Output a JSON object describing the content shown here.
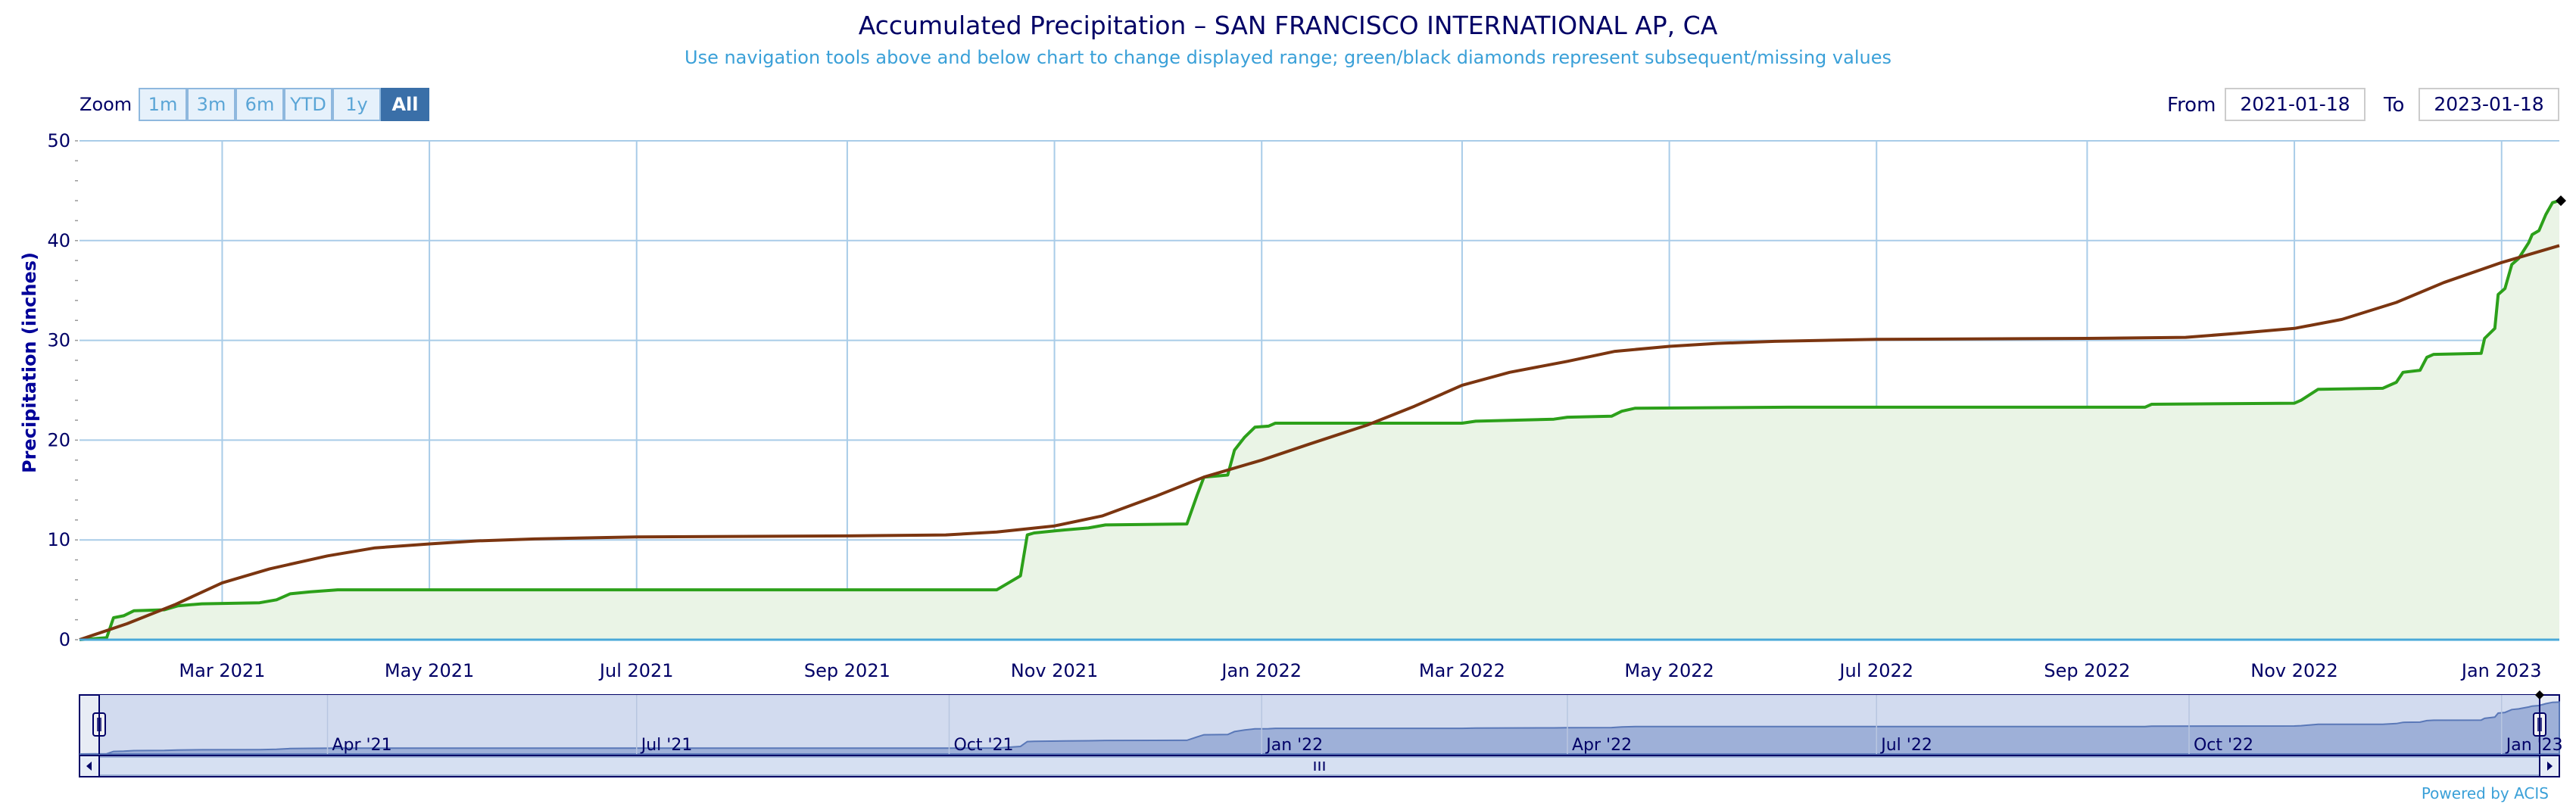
{
  "title": "Accumulated Precipitation – SAN FRANCISCO INTERNATIONAL AP, CA",
  "subtitle": "Use navigation tools above and below chart to change displayed range; green/black diamonds represent subsequent/missing values",
  "zoom": {
    "label": "Zoom",
    "buttons": [
      "1m",
      "3m",
      "6m",
      "YTD",
      "1y",
      "All"
    ],
    "active": "All"
  },
  "range": {
    "from_label": "From",
    "from_value": "2021-01-18",
    "to_label": "To",
    "to_value": "2023-01-18"
  },
  "credit": "Powered by ACIS",
  "colors": {
    "observed": "#2ca01a",
    "observed_fill": "#eaf4e6",
    "normal": "#7b3510",
    "grid": "#a9cce8",
    "axis_text": "#000066",
    "navigator_fill": "#9eb0d8"
  },
  "navigator": {
    "ticks": [
      "Apr '21",
      "Jul '21",
      "Oct '21",
      "Jan '22",
      "Apr '22",
      "Jul '22",
      "Oct '22",
      "Jan '23"
    ]
  },
  "chart_data": {
    "type": "area",
    "ylabel": "Precipitation (inches)",
    "xlabel": "",
    "ylim": [
      0,
      50
    ],
    "xlim": [
      "2021-01-18",
      "2023-01-18"
    ],
    "yticks": [
      0,
      10,
      20,
      30,
      40,
      50
    ],
    "xticks": [
      "Mar 2021",
      "May 2021",
      "Jul 2021",
      "Sep 2021",
      "Nov 2021",
      "Jan 2022",
      "Mar 2022",
      "May 2022",
      "Jul 2022",
      "Sep 2022",
      "Nov 2022",
      "Jan 2023"
    ],
    "xtick_dates": [
      "2021-03-01",
      "2021-05-01",
      "2021-07-01",
      "2021-09-01",
      "2021-11-01",
      "2022-01-01",
      "2022-03-01",
      "2022-05-01",
      "2022-07-01",
      "2022-09-01",
      "2022-11-01",
      "2023-01-01"
    ],
    "grid": true,
    "series": [
      {
        "name": "",
        "kind": "observed",
        "points": [
          [
            "2021-01-18",
            0
          ],
          [
            "2021-01-26",
            0.2
          ],
          [
            "2021-01-28",
            2.2
          ],
          [
            "2021-01-31",
            2.4
          ],
          [
            "2021-02-03",
            2.9
          ],
          [
            "2021-02-12",
            3.0
          ],
          [
            "2021-02-16",
            3.4
          ],
          [
            "2021-02-23",
            3.6
          ],
          [
            "2021-03-12",
            3.7
          ],
          [
            "2021-03-17",
            4.0
          ],
          [
            "2021-03-21",
            4.6
          ],
          [
            "2021-03-27",
            4.8
          ],
          [
            "2021-04-04",
            5.0
          ],
          [
            "2021-10-15",
            5.0
          ],
          [
            "2021-10-18",
            5.6
          ],
          [
            "2021-10-22",
            6.4
          ],
          [
            "2021-10-24",
            10.5
          ],
          [
            "2021-10-26",
            10.7
          ],
          [
            "2021-11-04",
            11.0
          ],
          [
            "2021-11-11",
            11.2
          ],
          [
            "2021-11-16",
            11.5
          ],
          [
            "2021-12-10",
            11.6
          ],
          [
            "2021-12-13",
            14.5
          ],
          [
            "2021-12-15",
            16.3
          ],
          [
            "2021-12-22",
            16.5
          ],
          [
            "2021-12-24",
            19.0
          ],
          [
            "2021-12-27",
            20.3
          ],
          [
            "2021-12-30",
            21.3
          ],
          [
            "2022-01-03",
            21.4
          ],
          [
            "2022-01-05",
            21.7
          ],
          [
            "2022-03-01",
            21.7
          ],
          [
            "2022-03-05",
            21.9
          ],
          [
            "2022-03-28",
            22.1
          ],
          [
            "2022-04-01",
            22.3
          ],
          [
            "2022-04-14",
            22.4
          ],
          [
            "2022-04-17",
            22.9
          ],
          [
            "2022-04-21",
            23.2
          ],
          [
            "2022-06-05",
            23.3
          ],
          [
            "2022-09-18",
            23.3
          ],
          [
            "2022-09-20",
            23.6
          ],
          [
            "2022-11-01",
            23.7
          ],
          [
            "2022-11-03",
            24.0
          ],
          [
            "2022-11-08",
            25.1
          ],
          [
            "2022-11-27",
            25.2
          ],
          [
            "2022-12-01",
            25.8
          ],
          [
            "2022-12-03",
            26.8
          ],
          [
            "2022-12-08",
            27.0
          ],
          [
            "2022-12-10",
            28.3
          ],
          [
            "2022-12-12",
            28.6
          ],
          [
            "2022-12-26",
            28.7
          ],
          [
            "2022-12-27",
            30.2
          ],
          [
            "2022-12-30",
            31.2
          ],
          [
            "2022-12-31",
            34.6
          ],
          [
            "2023-01-02",
            35.2
          ],
          [
            "2023-01-04",
            37.6
          ],
          [
            "2023-01-06",
            38.2
          ],
          [
            "2023-01-09",
            39.8
          ],
          [
            "2023-01-10",
            40.6
          ],
          [
            "2023-01-12",
            41.0
          ],
          [
            "2023-01-14",
            42.6
          ],
          [
            "2023-01-16",
            43.8
          ],
          [
            "2023-01-18",
            44.0
          ]
        ]
      },
      {
        "name": "",
        "kind": "normal",
        "points": [
          [
            "2021-01-18",
            0
          ],
          [
            "2021-02-01",
            1.6
          ],
          [
            "2021-02-15",
            3.5
          ],
          [
            "2021-03-01",
            5.7
          ],
          [
            "2021-03-15",
            7.1
          ],
          [
            "2021-04-01",
            8.4
          ],
          [
            "2021-04-15",
            9.2
          ],
          [
            "2021-05-01",
            9.6
          ],
          [
            "2021-05-15",
            9.9
          ],
          [
            "2021-06-01",
            10.1
          ],
          [
            "2021-07-01",
            10.3
          ],
          [
            "2021-09-01",
            10.4
          ],
          [
            "2021-09-30",
            10.5
          ],
          [
            "2021-10-15",
            10.8
          ],
          [
            "2021-11-01",
            11.4
          ],
          [
            "2021-11-15",
            12.4
          ],
          [
            "2021-12-01",
            14.4
          ],
          [
            "2021-12-15",
            16.3
          ],
          [
            "2022-01-01",
            18.0
          ],
          [
            "2022-01-15",
            19.6
          ],
          [
            "2022-02-01",
            21.5
          ],
          [
            "2022-02-15",
            23.4
          ],
          [
            "2022-03-01",
            25.5
          ],
          [
            "2022-03-15",
            26.8
          ],
          [
            "2022-04-01",
            27.9
          ],
          [
            "2022-04-15",
            28.9
          ],
          [
            "2022-05-01",
            29.4
          ],
          [
            "2022-05-15",
            29.7
          ],
          [
            "2022-06-01",
            29.9
          ],
          [
            "2022-07-01",
            30.1
          ],
          [
            "2022-09-01",
            30.2
          ],
          [
            "2022-09-30",
            30.3
          ],
          [
            "2022-10-15",
            30.7
          ],
          [
            "2022-11-01",
            31.2
          ],
          [
            "2022-11-15",
            32.1
          ],
          [
            "2022-12-01",
            33.8
          ],
          [
            "2022-12-15",
            35.8
          ],
          [
            "2023-01-01",
            37.8
          ],
          [
            "2023-01-18",
            39.5
          ]
        ]
      }
    ],
    "annotations": [
      {
        "date": "2023-01-18",
        "value": 44.0,
        "marker": "black diamond"
      }
    ]
  }
}
